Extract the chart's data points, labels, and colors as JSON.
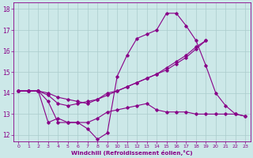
{
  "xlabel": "Windchill (Refroidissement éolien,°C)",
  "bg_color": "#cce8e8",
  "grid_color": "#aacccc",
  "line_color": "#880088",
  "xlim": [
    -0.5,
    23.5
  ],
  "ylim": [
    11.7,
    18.3
  ],
  "xticks": [
    0,
    1,
    2,
    3,
    4,
    5,
    6,
    7,
    8,
    9,
    10,
    11,
    12,
    13,
    14,
    15,
    16,
    17,
    18,
    19,
    20,
    21,
    22,
    23
  ],
  "yticks": [
    12,
    13,
    14,
    15,
    16,
    17,
    18
  ],
  "lines": [
    {
      "x": [
        0,
        1,
        2,
        3,
        4,
        5,
        6,
        7,
        8,
        9,
        10,
        11,
        12,
        13,
        14,
        15,
        16,
        17,
        18,
        19,
        20,
        21,
        22,
        23
      ],
      "y": [
        14.1,
        14.1,
        14.1,
        12.6,
        12.8,
        12.6,
        12.6,
        12.3,
        11.8,
        12.1,
        14.8,
        15.8,
        16.6,
        16.8,
        17.0,
        17.8,
        17.8,
        17.2,
        16.5,
        15.3,
        14.0,
        13.4,
        13.0,
        12.9
      ]
    },
    {
      "x": [
        0,
        1,
        2,
        3,
        4,
        5,
        6,
        7,
        8,
        9,
        10,
        11,
        12,
        13,
        14,
        15,
        16,
        17,
        18,
        19,
        20,
        21,
        22,
        23
      ],
      "y": [
        14.1,
        14.1,
        14.1,
        13.6,
        12.6,
        12.6,
        12.6,
        12.6,
        12.8,
        13.1,
        13.2,
        13.3,
        13.4,
        13.5,
        13.2,
        13.1,
        13.1,
        13.1,
        13.0,
        13.0,
        13.0,
        13.0,
        13.0,
        12.9
      ]
    },
    {
      "x": [
        0,
        1,
        2,
        3,
        4,
        5,
        6,
        7,
        8,
        9,
        10,
        11,
        12,
        13,
        14,
        15,
        16,
        17,
        18,
        19
      ],
      "y": [
        14.1,
        14.1,
        14.1,
        13.9,
        13.5,
        13.4,
        13.5,
        13.6,
        13.7,
        13.9,
        14.1,
        14.3,
        14.5,
        14.7,
        14.9,
        15.2,
        15.5,
        15.8,
        16.2,
        16.5
      ]
    },
    {
      "x": [
        0,
        1,
        2,
        3,
        4,
        5,
        6,
        7,
        8,
        9,
        10,
        11,
        12,
        13,
        14,
        15,
        16,
        17,
        18,
        19,
        20
      ],
      "y": [
        14.1,
        14.1,
        14.1,
        14.0,
        13.8,
        13.7,
        13.6,
        13.5,
        13.7,
        14.0,
        14.1,
        14.3,
        14.5,
        14.7,
        14.9,
        15.1,
        15.4,
        15.7,
        16.1,
        16.5,
        null
      ]
    }
  ]
}
